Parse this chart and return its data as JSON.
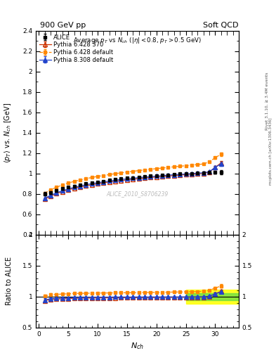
{
  "title_top": "900 GeV pp",
  "title_right": "Soft QCD",
  "subtitle": "Average p_{T} vs N_{ch} (|#eta| < 0.8, p_{T} > 0.5 GeV)",
  "ylabel_main": "<p_{T}> vs. N_{ch} [GeV]",
  "ylabel_ratio": "Ratio to ALICE",
  "xlabel": "N_{ch}",
  "watermark": "ALICE_2010_S8706239",
  "right_label1": "Rivet 3.1.10, ≥ 3.4M events",
  "right_label2": "mcplots.cern.ch [arXiv:1306.3436]",
  "alice_x": [
    1,
    2,
    3,
    4,
    5,
    6,
    7,
    8,
    9,
    10,
    11,
    12,
    13,
    14,
    15,
    16,
    17,
    18,
    19,
    20,
    21,
    22,
    23,
    24,
    25,
    26,
    27,
    28,
    29,
    30,
    31
  ],
  "alice_y": [
    0.8,
    0.813,
    0.835,
    0.852,
    0.866,
    0.878,
    0.89,
    0.9,
    0.91,
    0.918,
    0.926,
    0.934,
    0.941,
    0.948,
    0.954,
    0.96,
    0.965,
    0.97,
    0.975,
    0.98,
    0.984,
    0.988,
    0.992,
    0.996,
    0.999,
    1.002,
    1.005,
    1.008,
    1.011,
    1.013,
    1.015
  ],
  "alice_yerr": [
    0.018,
    0.013,
    0.01,
    0.009,
    0.008,
    0.007,
    0.007,
    0.006,
    0.006,
    0.006,
    0.005,
    0.005,
    0.005,
    0.005,
    0.005,
    0.004,
    0.004,
    0.004,
    0.004,
    0.004,
    0.004,
    0.004,
    0.004,
    0.005,
    0.005,
    0.006,
    0.007,
    0.008,
    0.01,
    0.013,
    0.02
  ],
  "p6370_x": [
    1,
    2,
    3,
    4,
    5,
    6,
    7,
    8,
    9,
    10,
    11,
    12,
    13,
    14,
    15,
    16,
    17,
    18,
    19,
    20,
    21,
    22,
    23,
    24,
    25,
    26,
    27,
    28,
    29,
    30,
    31
  ],
  "p6370_y": [
    0.748,
    0.778,
    0.803,
    0.823,
    0.84,
    0.855,
    0.868,
    0.88,
    0.89,
    0.9,
    0.909,
    0.917,
    0.924,
    0.931,
    0.938,
    0.944,
    0.95,
    0.956,
    0.961,
    0.966,
    0.971,
    0.976,
    0.98,
    0.985,
    0.989,
    0.993,
    0.997,
    1.001,
    1.015,
    1.06,
    1.105
  ],
  "p6370_yerr": [
    0.008,
    0.006,
    0.005,
    0.005,
    0.004,
    0.004,
    0.004,
    0.004,
    0.003,
    0.003,
    0.003,
    0.003,
    0.003,
    0.003,
    0.003,
    0.003,
    0.002,
    0.002,
    0.002,
    0.002,
    0.002,
    0.003,
    0.003,
    0.003,
    0.004,
    0.004,
    0.005,
    0.006,
    0.008,
    0.012,
    0.02
  ],
  "p6def_x": [
    1,
    2,
    3,
    4,
    5,
    6,
    7,
    8,
    9,
    10,
    11,
    12,
    13,
    14,
    15,
    16,
    17,
    18,
    19,
    20,
    21,
    22,
    23,
    24,
    25,
    26,
    27,
    28,
    29,
    30,
    31
  ],
  "p6def_y": [
    0.808,
    0.84,
    0.866,
    0.888,
    0.907,
    0.923,
    0.937,
    0.95,
    0.961,
    0.972,
    0.981,
    0.99,
    0.999,
    1.007,
    1.015,
    1.022,
    1.029,
    1.036,
    1.042,
    1.048,
    1.054,
    1.06,
    1.066,
    1.071,
    1.077,
    1.083,
    1.088,
    1.094,
    1.115,
    1.155,
    1.19
  ],
  "p6def_yerr": [
    0.007,
    0.005,
    0.004,
    0.004,
    0.004,
    0.003,
    0.003,
    0.003,
    0.003,
    0.003,
    0.002,
    0.002,
    0.002,
    0.002,
    0.002,
    0.002,
    0.002,
    0.002,
    0.002,
    0.002,
    0.002,
    0.002,
    0.002,
    0.002,
    0.003,
    0.003,
    0.004,
    0.005,
    0.007,
    0.01,
    0.016
  ],
  "p8def_x": [
    1,
    2,
    3,
    4,
    5,
    6,
    7,
    8,
    9,
    10,
    11,
    12,
    13,
    14,
    15,
    16,
    17,
    18,
    19,
    20,
    21,
    22,
    23,
    24,
    25,
    26,
    27,
    28,
    29,
    30,
    31
  ],
  "p8def_y": [
    0.758,
    0.787,
    0.811,
    0.832,
    0.849,
    0.865,
    0.878,
    0.89,
    0.901,
    0.91,
    0.919,
    0.927,
    0.935,
    0.942,
    0.948,
    0.954,
    0.96,
    0.965,
    0.97,
    0.975,
    0.98,
    0.984,
    0.988,
    0.992,
    0.996,
    1.0,
    1.004,
    1.007,
    1.018,
    1.06,
    1.095
  ],
  "p8def_yerr": [
    0.008,
    0.006,
    0.005,
    0.004,
    0.004,
    0.004,
    0.003,
    0.003,
    0.003,
    0.003,
    0.003,
    0.002,
    0.002,
    0.002,
    0.002,
    0.002,
    0.002,
    0.002,
    0.002,
    0.002,
    0.002,
    0.002,
    0.002,
    0.003,
    0.003,
    0.004,
    0.004,
    0.005,
    0.007,
    0.011,
    0.018
  ],
  "alice_color": "#000000",
  "p6370_color": "#cc3300",
  "p6def_color": "#ff8800",
  "p8def_color": "#2244cc",
  "ylim_main": [
    0.4,
    2.4
  ],
  "ylim_ratio": [
    0.5,
    2.0
  ],
  "xlim": [
    -0.5,
    34
  ],
  "band_xmin": 25,
  "band_xmax": 34,
  "band_yellow_ylo": 0.885,
  "band_yellow_yhi": 1.115,
  "band_green_ylo": 0.94,
  "band_green_yhi": 1.06
}
